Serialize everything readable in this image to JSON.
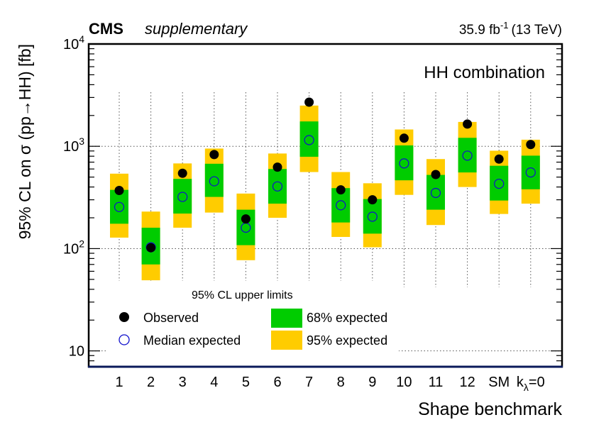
{
  "chart_data": {
    "type": "scatter",
    "experiment": "CMS",
    "label": "supplementary",
    "lumi_value": "35.9 fb",
    "lumi_exponent": "-1",
    "energy": "(13 TeV)",
    "annotation": "HH combination",
    "ylabel": "95% CL on σ (pp→HH) [fb]",
    "xlabel": "Shape benchmark",
    "yscale": "log",
    "ylim": [
      7,
      10000
    ],
    "y_ticks": [
      {
        "base": "10",
        "exp": "",
        "value": 10
      },
      {
        "base": "10",
        "exp": "2",
        "value": 100
      },
      {
        "base": "10",
        "exp": "3",
        "value": 1000
      },
      {
        "base": "10",
        "exp": "4",
        "value": 10000
      }
    ],
    "categories": [
      "1",
      "2",
      "3",
      "4",
      "5",
      "6",
      "7",
      "8",
      "9",
      "10",
      "11",
      "12",
      "SM",
      "kλ=0"
    ],
    "category_labels": [
      {
        "text": "1"
      },
      {
        "text": "2"
      },
      {
        "text": "3"
      },
      {
        "text": "4"
      },
      {
        "text": "5"
      },
      {
        "text": "6"
      },
      {
        "text": "7"
      },
      {
        "text": "8"
      },
      {
        "text": "9"
      },
      {
        "text": "10"
      },
      {
        "text": "11"
      },
      {
        "text": "12"
      },
      {
        "text": "SM"
      },
      {
        "text": "k",
        "sub": "λ",
        "suffix": "=0"
      }
    ],
    "observed": [
      370,
      102,
      545,
      830,
      195,
      625,
      2700,
      375,
      300,
      1200,
      530,
      1650,
      750,
      1040
    ],
    "median_expected": [
      255,
      103,
      320,
      455,
      160,
      405,
      1150,
      265,
      205,
      680,
      350,
      810,
      430,
      555
    ],
    "band68_low": [
      175,
      70,
      220,
      320,
      108,
      275,
      790,
      180,
      140,
      465,
      240,
      555,
      295,
      380
    ],
    "band68_high": [
      375,
      160,
      480,
      675,
      240,
      600,
      1750,
      390,
      305,
      1020,
      525,
      1210,
      645,
      810
    ],
    "band95_low": [
      128,
      49,
      160,
      225,
      77,
      200,
      560,
      130,
      103,
      335,
      170,
      400,
      218,
      275
    ],
    "band95_high": [
      540,
      230,
      680,
      950,
      345,
      850,
      2500,
      560,
      435,
      1460,
      750,
      1730,
      905,
      1160
    ],
    "legend": {
      "header": "95% CL upper limits",
      "observed": "Observed",
      "median": "Median expected",
      "band68": "68% expected",
      "band95": "95% expected"
    },
    "colors": {
      "band68": "#00cc00",
      "band95": "#ffcc00",
      "observed": "#000000",
      "median": "#1010cc",
      "frame": "#000000",
      "bottom_axis": "#0a1a5a"
    }
  }
}
